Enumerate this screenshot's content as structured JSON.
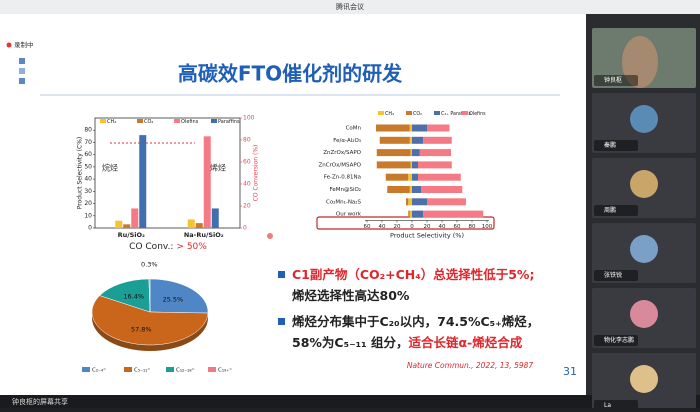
{
  "window": {
    "title": "腾讯会议",
    "recording": "录制中",
    "share_status": "钟良枢的屏幕共享"
  },
  "slide": {
    "title": "高碳效FTO催化剂的研发",
    "page_number": "31",
    "bar_chart": {
      "type": "bar",
      "categories": [
        "Ru/SiO₂",
        "Na-Ru/SiO₂"
      ],
      "series": [
        {
          "name": "CH₄",
          "color": "#f5c330",
          "values": [
            6,
            7
          ]
        },
        {
          "name": "CO₂",
          "color": "#c87a2a",
          "values": [
            3,
            4
          ]
        },
        {
          "name": "Olefins",
          "color": "#f47a85",
          "values": [
            16,
            75
          ]
        },
        {
          "name": "Paraffins",
          "color": "#3e6fb0",
          "values": [
            76,
            16
          ]
        }
      ],
      "ylabel": "Product Selectivity (C%)",
      "y2label": "CO Conversion (%)",
      "ylim": [
        0,
        90
      ],
      "yticks": [
        0,
        10,
        20,
        30,
        40,
        50,
        60,
        70,
        80
      ],
      "y2lim": [
        0,
        100
      ],
      "y2ticks": [
        0,
        20,
        40,
        60,
        80,
        100
      ],
      "annotations": [
        "烷烃",
        "烯烃"
      ]
    },
    "co_conversion": {
      "label": "CO Conv.:",
      "value": "> 50%"
    },
    "pie_chart": {
      "type": "pie",
      "categories": [
        "C₂₋₄⁼",
        "C₅₋₁₁⁼",
        "C₁₂₋₁₈⁼",
        "C₁₉₊⁼"
      ],
      "values": [
        25.5,
        57.8,
        16.4,
        0.3
      ],
      "value_labels": [
        "25.5%",
        "57.8%",
        "16.4%",
        "0.3%"
      ],
      "colors": [
        "#4f86c6",
        "#c9661c",
        "#1a9e96",
        "#f07a86"
      ]
    },
    "hbar_chart": {
      "type": "hbar",
      "categories": [
        "CoMn",
        "Fe/α-Al₂O₃",
        "ZnZrOx/SAPO",
        "ZnCrOx/MSAPO",
        "Fe-Zn-0.81Na",
        "FeMn@SiO₂",
        "Co₂Mn₁-Na₂S",
        "Our work"
      ],
      "series": [
        {
          "name": "CH₄",
          "color": "#f5c330",
          "side": "left",
          "values": [
            3,
            3,
            2,
            2,
            5,
            3,
            5,
            3
          ]
        },
        {
          "name": "CO₂",
          "color": "#c87a2a",
          "side": "left",
          "values": [
            45,
            40,
            45,
            45,
            30,
            30,
            3,
            2
          ]
        },
        {
          "name": "C₂₊ Paraffins",
          "color": "#4f6fa8",
          "side": "right",
          "values": [
            20,
            15,
            10,
            8,
            8,
            12,
            20,
            15
          ]
        },
        {
          "name": "Olefins",
          "color": "#f47a85",
          "side": "right",
          "values": [
            30,
            38,
            42,
            45,
            57,
            55,
            52,
            80
          ]
        }
      ],
      "xlabel": "Product Selectivity (%)",
      "xlim": [
        -60,
        100
      ],
      "xticks": [
        {
          "value": -60,
          "label": "60"
        },
        {
          "value": -40,
          "label": "40"
        },
        {
          "value": -20,
          "label": "20"
        },
        0,
        20,
        40,
        60,
        80,
        100
      ]
    },
    "bullets": [
      [
        {
          "text": "C1副产物（CO₂+CH₄）总选择性低于5%;",
          "color": "#e0252b"
        },
        {
          "text": "烯烃选择性高达80%",
          "color": "#222"
        }
      ],
      [
        {
          "text": "烯烃分布集中于C₂₀以内，74.5%C₅₊烯烃，",
          "color": "#222"
        },
        {
          "text": "58%为C₅₋₁₁ 组分，",
          "color": "#222"
        },
        {
          "text": "适合长链α-烯烃合成",
          "color": "#e0252b"
        }
      ]
    ],
    "citation": "Nature Commun., 2022, 13, 5987"
  },
  "participants": [
    "钟良枢",
    "秦鹏",
    "周鹏",
    "张铁锐",
    "物化李志鹏",
    "La"
  ]
}
